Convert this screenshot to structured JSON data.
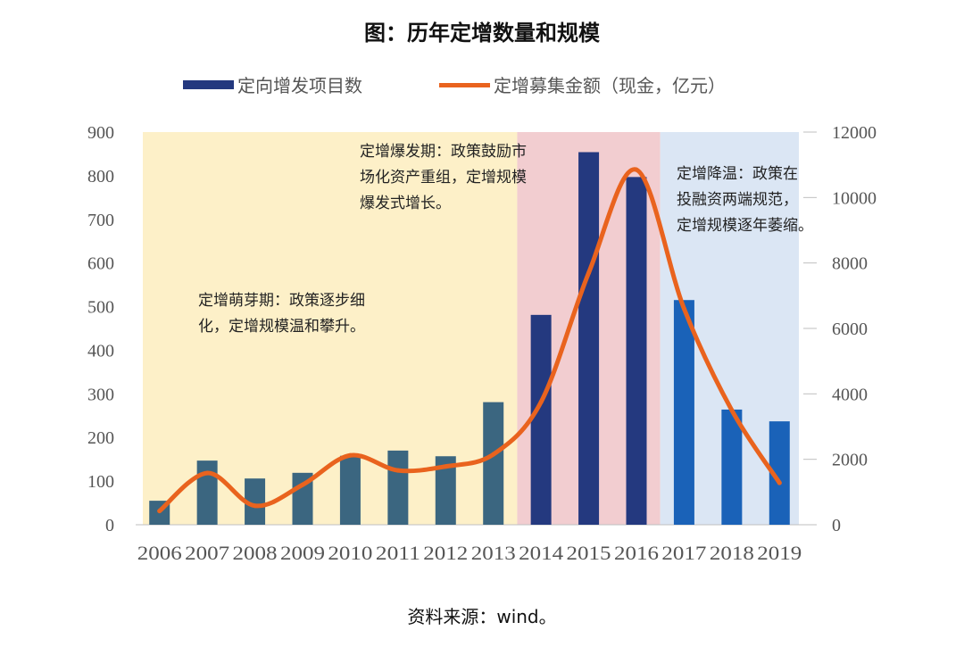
{
  "chart_data": {
    "type": "bar+line",
    "title": "图：历年定增数量和规模",
    "categories": [
      "2006",
      "2007",
      "2008",
      "2009",
      "2010",
      "2011",
      "2012",
      "2013",
      "2014",
      "2015",
      "2016",
      "2017",
      "2018",
      "2019"
    ],
    "series": [
      {
        "name": "定向增发项目数",
        "type": "bar",
        "axis": "left",
        "values": [
          55,
          147,
          106,
          119,
          158,
          170,
          157,
          281,
          481,
          854,
          797,
          515,
          264,
          237
        ]
      },
      {
        "name": "定增募集金额（现金，亿元）",
        "type": "line",
        "axis": "right",
        "values": [
          420,
          1580,
          580,
          1220,
          2120,
          1660,
          1780,
          2150,
          3750,
          7700,
          10850,
          6600,
          3500,
          1280
        ]
      }
    ],
    "y_left": {
      "min": 0,
      "max": 900,
      "ticks": [
        0,
        100,
        200,
        300,
        400,
        500,
        600,
        700,
        800,
        900
      ]
    },
    "y_right": {
      "min": 0,
      "max": 12000,
      "ticks": [
        0,
        2000,
        4000,
        6000,
        8000,
        10000,
        12000
      ]
    },
    "grid": false,
    "legend_position": "top",
    "periods": [
      {
        "start": "2006",
        "end": "2013",
        "color": "#fdf0c8",
        "bar_color": "#3b6680",
        "lines": [
          "定增萌芽期：政策逐步细",
          "化，定增规模温和攀升。"
        ]
      },
      {
        "start": "2014",
        "end": "2016",
        "color": "#f2cdd0",
        "bar_color": "#24397f",
        "lines": [
          "定增爆发期：政策鼓励市",
          "场化资产重组，定增规模",
          "爆发式增长。"
        ]
      },
      {
        "start": "2017",
        "end": "2019",
        "color": "#dbe6f4",
        "bar_color": "#1a62b8",
        "lines": [
          "定增降温：政策在",
          "投融资两端规范，",
          "定增规模逐年萎缩。"
        ]
      }
    ],
    "colors": {
      "legend_bar": "#24397f",
      "line": "#e9631e"
    }
  },
  "source": "资料来源：wind。"
}
